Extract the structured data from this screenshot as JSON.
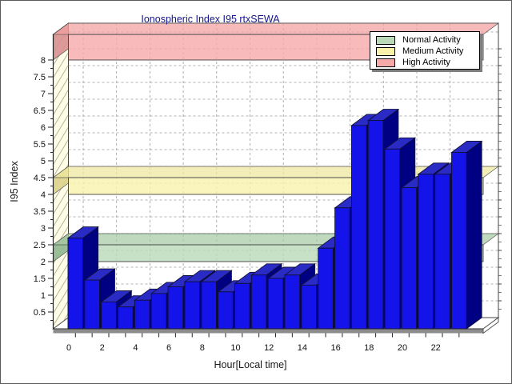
{
  "title": "Ionospheric Index I95 rtxSEWA",
  "legend": {
    "items": [
      {
        "label": "Normal Activity",
        "color": "#b9d9b9"
      },
      {
        "label": "Medium Activity",
        "color": "#f8f2ab"
      },
      {
        "label": "High Activity",
        "color": "#f6a9a9"
      }
    ]
  },
  "chart_data": {
    "type": "bar",
    "title": "Ionospheric Index I95 rtxSEWA",
    "xlabel": "Hour[Local time]",
    "ylabel": "I95 Index",
    "categories": [
      0,
      1,
      2,
      3,
      4,
      5,
      6,
      7,
      8,
      9,
      10,
      11,
      12,
      13,
      14,
      15,
      16,
      17,
      18,
      19,
      20,
      21,
      22,
      23
    ],
    "values": [
      2.7,
      1.45,
      0.8,
      0.65,
      0.85,
      1.05,
      1.25,
      1.4,
      1.4,
      1.1,
      1.35,
      1.6,
      1.5,
      1.6,
      1.3,
      2.4,
      3.6,
      6.05,
      6.2,
      5.35,
      4.2,
      4.6,
      4.6,
      5.25
    ],
    "ylim": [
      0,
      8.75
    ],
    "yticks_labeled_min": 0.5,
    "yticks_labeled_max": 8,
    "ytick_step": 0.5,
    "ytick_minor_step": 0.25,
    "xticks_labeled": [
      0,
      2,
      4,
      6,
      8,
      10,
      12,
      14,
      16,
      18,
      20,
      22
    ],
    "grid": true,
    "legend_position": "top-right",
    "bands": [
      {
        "name": "Normal Activity",
        "from": 2.0,
        "to": 2.5,
        "front": "#b9d9b9",
        "top": "#a5cba5",
        "end": "#8fb88f"
      },
      {
        "name": "Medium Activity",
        "from": 4.0,
        "to": 4.5,
        "front": "#f8f2ab",
        "top": "#efe89c",
        "end": "#ded38c"
      },
      {
        "name": "High Activity",
        "from": 8.0,
        "to": 8.76,
        "front": "#f6a9a9",
        "top": "#f2a0a0",
        "end": "#d88f8f"
      }
    ],
    "bar_colors": {
      "front": "#1414ea",
      "top": "#2a2ac4",
      "side": "#000082",
      "outline": "#10103a"
    },
    "wall_color": "#fffde8",
    "accent_title_color": "#14148c"
  }
}
